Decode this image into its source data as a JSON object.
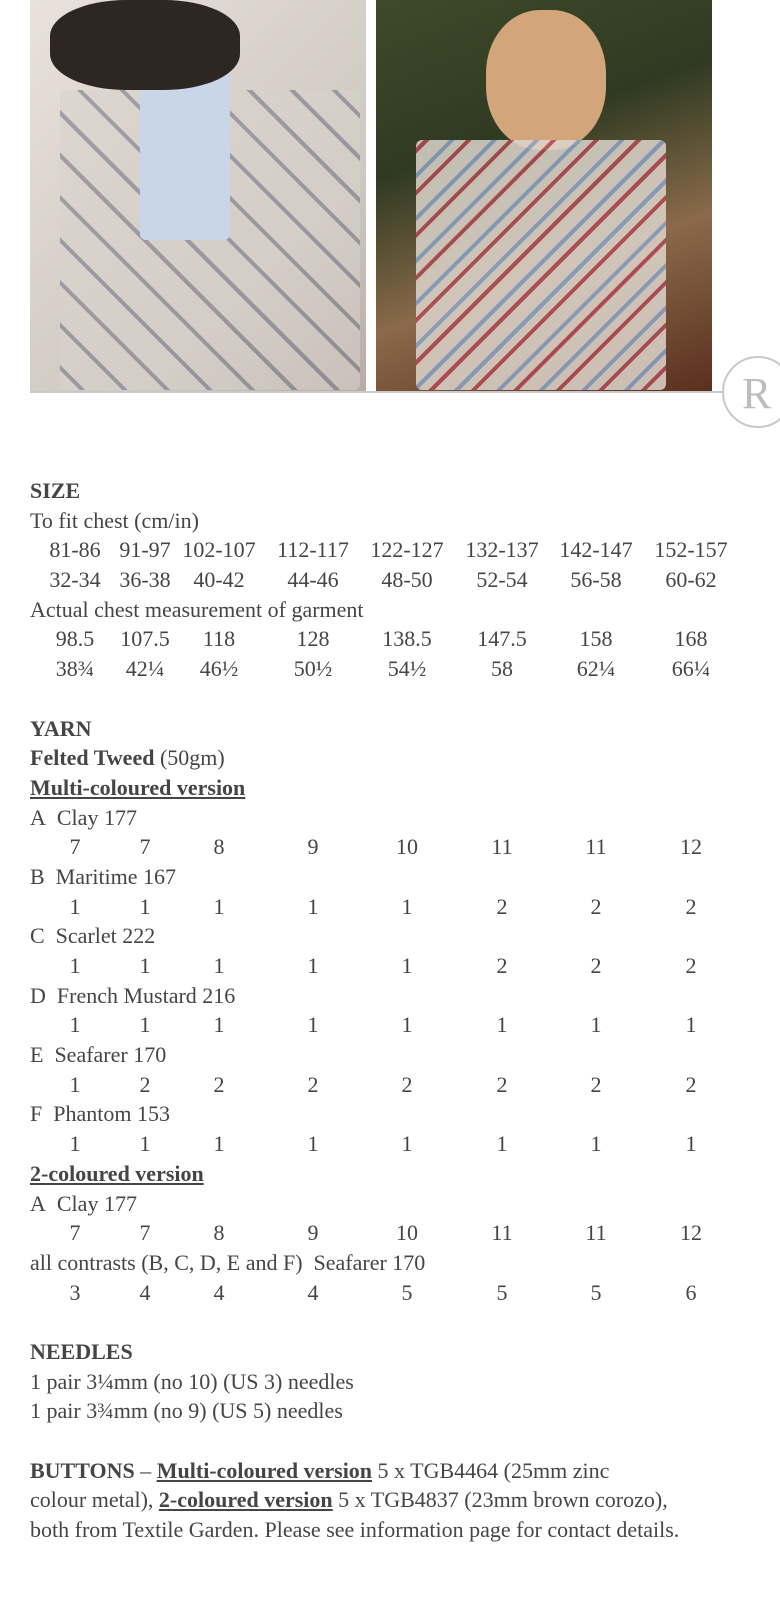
{
  "logo_letter": "R",
  "columns_center_note": null,
  "size": {
    "heading": "SIZE",
    "to_fit_label": "To fit chest (cm/in)",
    "to_fit_cm": [
      "81-86",
      "91-97",
      "102-107",
      "112-117",
      "122-127",
      "132-137",
      "142-147",
      "152-157"
    ],
    "to_fit_in": [
      "32-34",
      "36-38",
      "40-42",
      "44-46",
      "48-50",
      "52-54",
      "56-58",
      "60-62"
    ],
    "actual_label": "Actual chest measurement of garment",
    "actual_cm": [
      "98.5",
      "107.5",
      "118",
      "128",
      "138.5",
      "147.5",
      "158",
      "168"
    ],
    "actual_in": [
      "38¾",
      "42¼",
      "46½",
      "50½",
      "54½",
      "58",
      "62¼",
      "66¼"
    ]
  },
  "yarn": {
    "heading": "YARN",
    "yarn_name": "Felted Tweed",
    "yarn_weight": "(50gm)",
    "multi_heading": "Multi-coloured version",
    "multi": [
      {
        "label": "A  Clay 177",
        "values": [
          "7",
          "7",
          "8",
          "9",
          "10",
          "11",
          "11",
          "12"
        ]
      },
      {
        "label": "B  Maritime 167",
        "values": [
          "1",
          "1",
          "1",
          "1",
          "1",
          "2",
          "2",
          "2"
        ]
      },
      {
        "label": "C  Scarlet 222",
        "values": [
          "1",
          "1",
          "1",
          "1",
          "1",
          "2",
          "2",
          "2"
        ]
      },
      {
        "label": "D  French Mustard 216",
        "values": [
          "1",
          "1",
          "1",
          "1",
          "1",
          "1",
          "1",
          "1"
        ]
      },
      {
        "label": "E  Seafarer 170",
        "values": [
          "1",
          "2",
          "2",
          "2",
          "2",
          "2",
          "2",
          "2"
        ]
      },
      {
        "label": "F  Phantom 153",
        "values": [
          "1",
          "1",
          "1",
          "1",
          "1",
          "1",
          "1",
          "1"
        ]
      }
    ],
    "two_heading": "2-coloured version",
    "two": [
      {
        "label": "A  Clay 177",
        "values": [
          "7",
          "7",
          "8",
          "9",
          "10",
          "11",
          "11",
          "12"
        ]
      },
      {
        "label": "all contrasts (B, C, D, E and F)  Seafarer 170",
        "values": [
          "3",
          "4",
          "4",
          "4",
          "5",
          "5",
          "5",
          "6"
        ]
      }
    ]
  },
  "needles": {
    "heading": "NEEDLES",
    "lines": [
      "1 pair 3¼mm (no 10) (US 3) needles",
      "1 pair 3¾mm (no 9) (US 5) needles"
    ]
  },
  "buttons": {
    "heading": "BUTTONS",
    "dash": " – ",
    "multi_label": "Multi-coloured version",
    "multi_text_1": " 5 x TGB4464 (25mm zinc",
    "multi_text_2": "colour metal), ",
    "two_label": "2-coloured version",
    "two_text": " 5 x TGB4837 (23mm brown corozo),",
    "footer": "both from Textile Garden. Please see information page for contact details."
  }
}
